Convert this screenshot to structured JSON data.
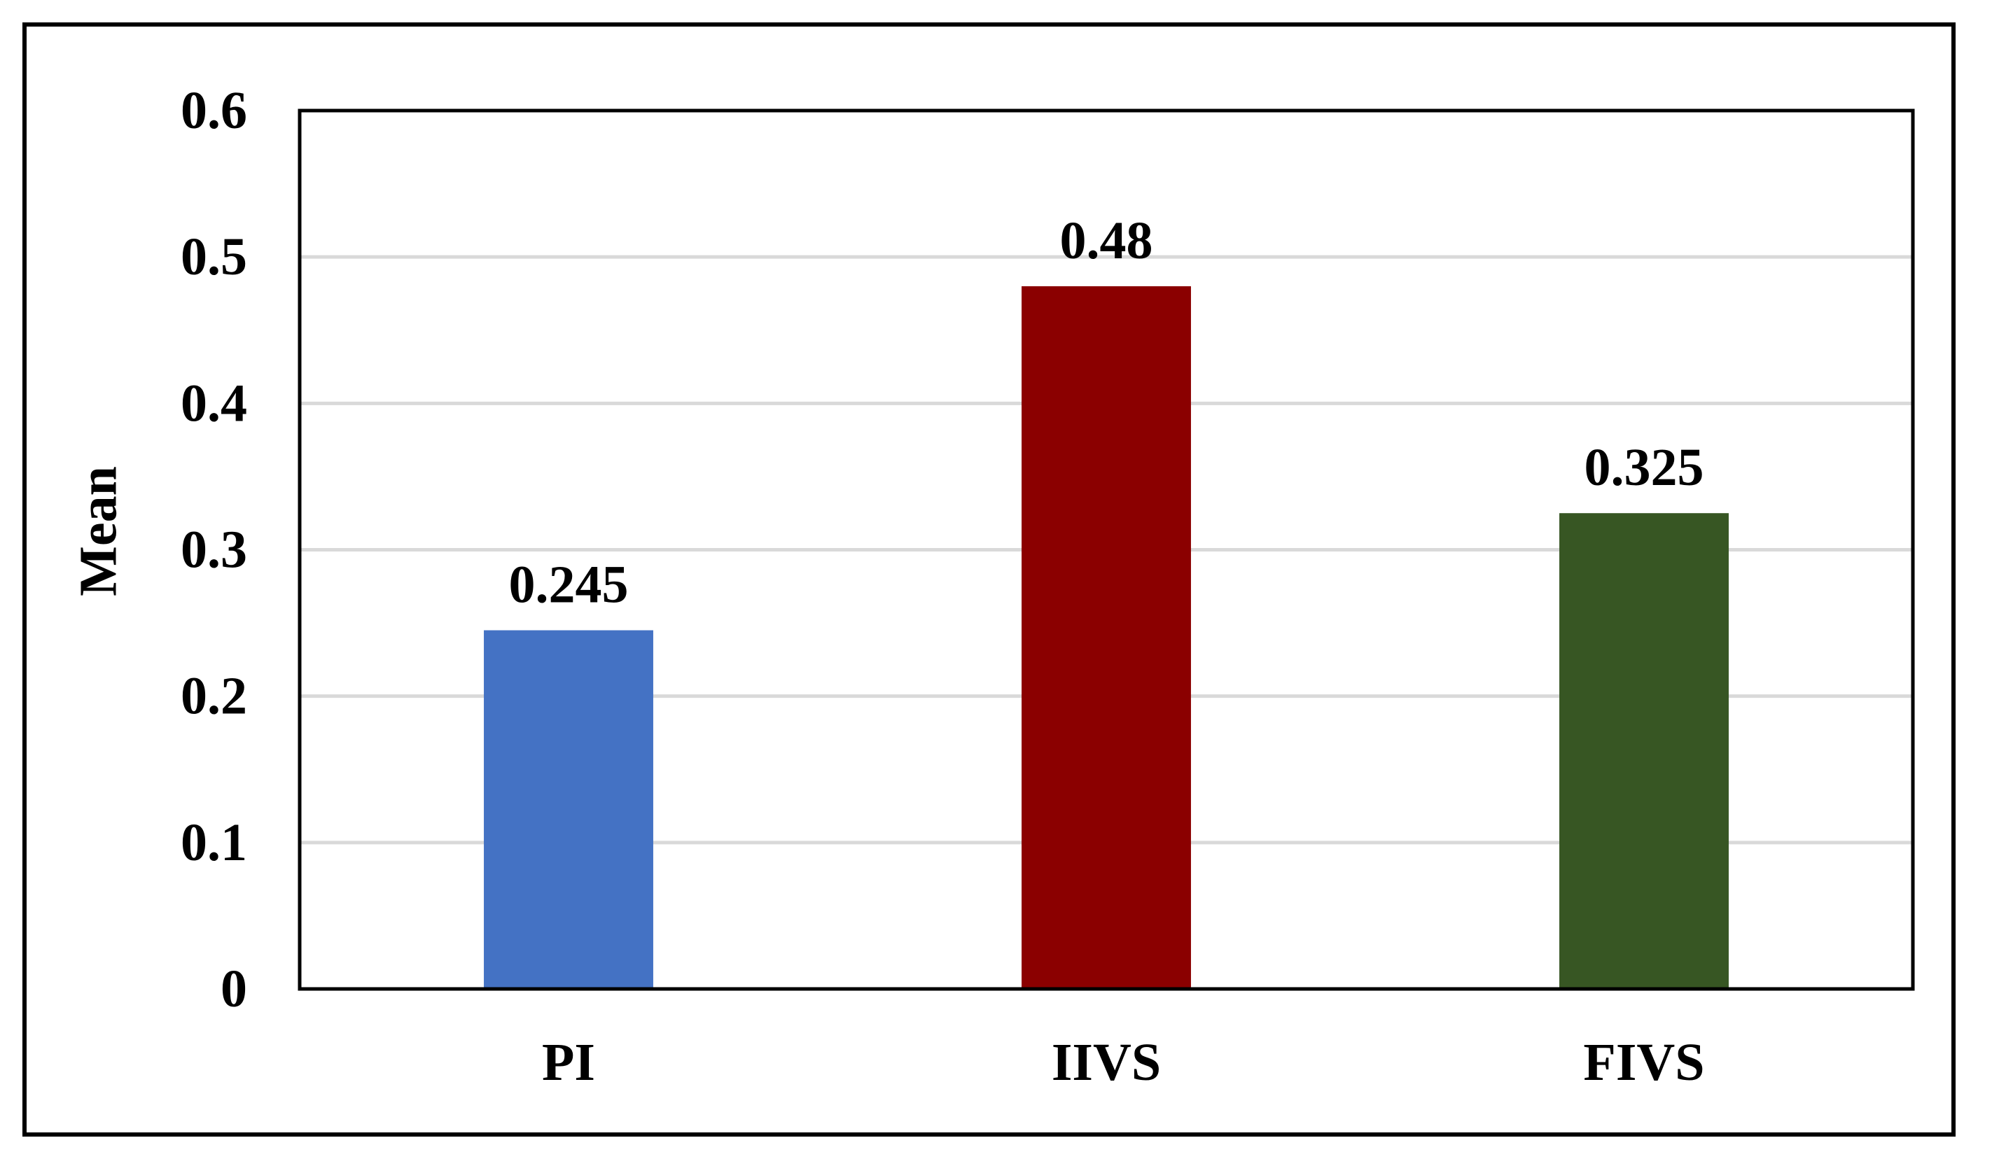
{
  "chart_data": {
    "type": "bar",
    "title": "",
    "xlabel": "",
    "ylabel": "Mean",
    "categories": [
      "PI",
      "IIVS",
      "FIVS"
    ],
    "values": [
      0.245,
      0.48,
      0.325
    ],
    "value_labels": [
      "0.245",
      "0.48",
      "0.325"
    ],
    "colors": [
      "#4472C4",
      "#8B0000",
      "#375623"
    ],
    "ylim": [
      0,
      0.6
    ],
    "yticks": [
      0,
      0.1,
      0.2,
      0.3,
      0.4,
      0.5,
      0.6
    ],
    "ytick_labels": [
      "0",
      "0.1",
      "0.2",
      "0.3",
      "0.4",
      "0.5",
      "0.6"
    ],
    "grid": true,
    "legend": false
  }
}
